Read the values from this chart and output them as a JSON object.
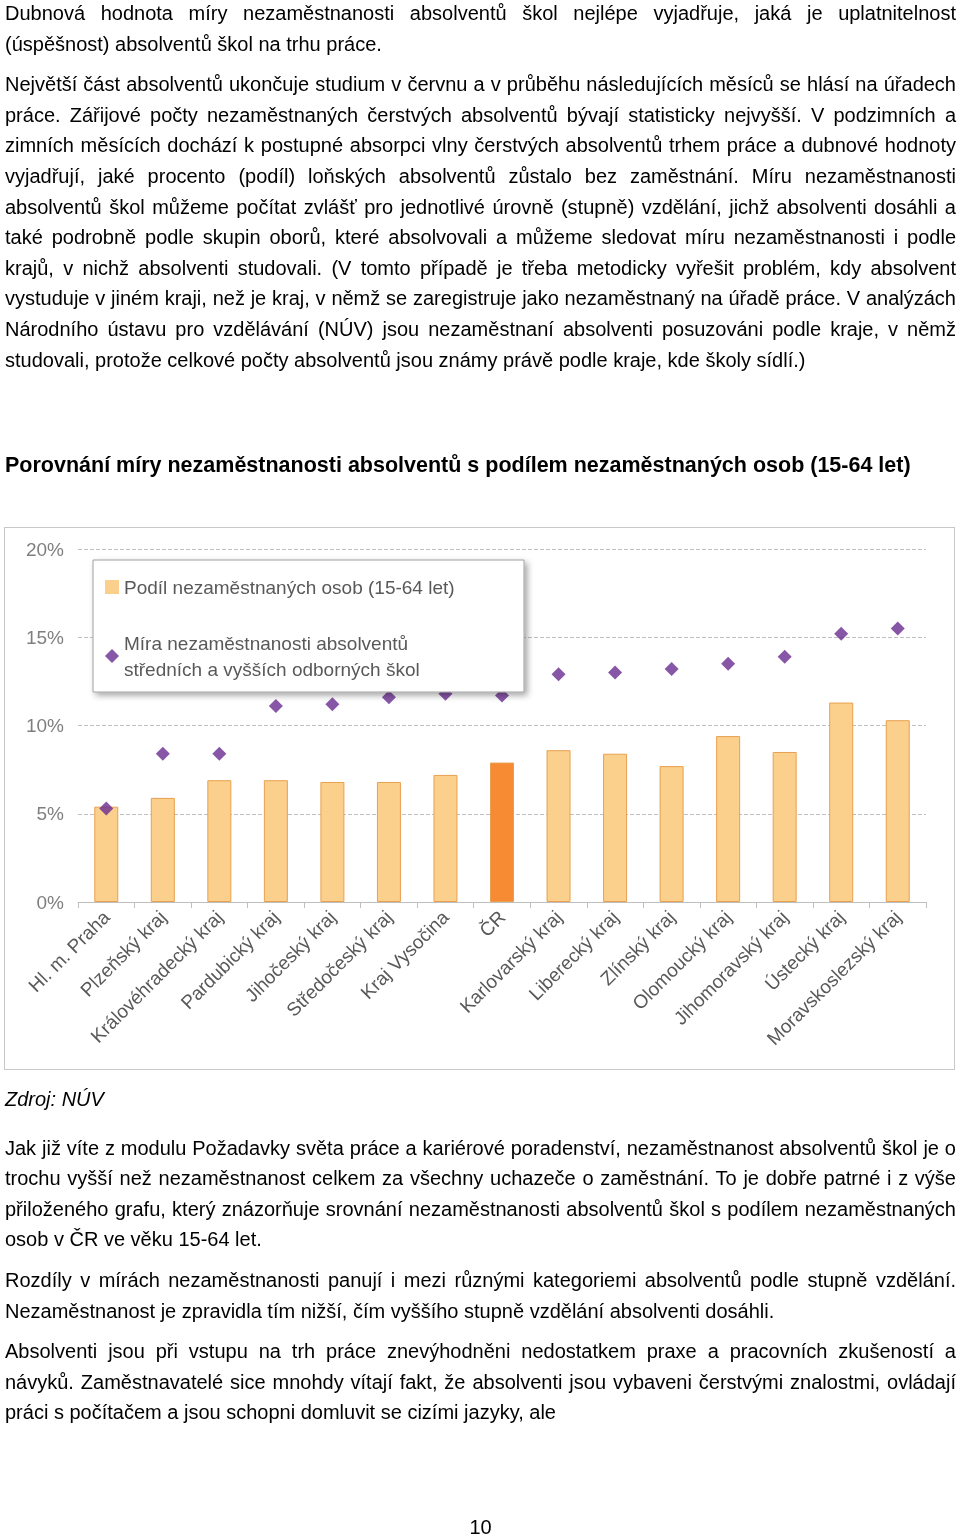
{
  "chart_data": {
    "type": "bar",
    "title": "Porovnání míry nezaměstnanosti absolventů s podílem nezaměstnaných osob (15-64 let)",
    "annotations": [
      "Dubnová hodnota míry nezaměstnanosti absolventů škol nejlépe vyjadřuje, jaká je uplatnitelnost (úspěšnost) absolventů škol na trhu práce.",
      "Největší část absolventů ukončuje studium v červnu a v průběhu následujících měsíců se hlásí na úřadech práce. Zářijové počty nezaměstnaných čerstvých absolventů bývají statisticky nejvyšší. V podzimních a zimních měsících dochází k postupné absorpci vlny čerstvých absolventů trhem práce a dubnové hodnoty vyjadřují, jaké procento (podíl) loňských absolventů zůstalo bez zaměstnání. Míru nezaměstnanosti absolventů škol můžeme počítat zvlášť pro jednotlivé úrovně (stupně) vzdělání, jichž absolventi dosáhli a také podrobně podle skupin oborů, které absolvovali a můžeme sledovat míru nezaměstnanosti i podle krajů, v nichž absolventi studovali. (V tomto případě je třeba metodicky vyřešit problém, kdy absolvent vystuduje v jiném kraji, než je kraj, v němž se zaregistruje jako nezaměstnaný na úřadě práce. V analýzách Národního ústavu pro vzdělávání (NÚV) jsou nezaměstnaní absolventi posuzováni podle kraje, v němž studovali, protože celkové počty absolventů jsou známy právě podle kraje, kde školy sídlí.)",
      "Zdroj: NÚV",
      "Jak již víte z modulu Požadavky světa práce a kariérové poradenství, nezaměstnanost absolventů škol je o trochu vyšší než nezaměstnanost celkem za všechny uchazeče o zaměstnání. To je dobře patrné i z výše přiloženého grafu, který znázorňuje srovnání nezaměstnanosti absolventů škol s podílem nezaměstnaných osob v ČR ve věku 15-64 let.",
      "Rozdíly v mírách nezaměstnanosti panují i mezi různými kategoriemi absolventů podle stupně vzdělání. Nezaměstnanost je zpravidla tím nižší, čím vyššího stupně vzdělání absolventi dosáhli.",
      "Absolventi jsou při vstupu na trh práce znevýhodněni nedostatkem praxe a pracovních zkušeností a návyků. Zaměstnavatelé sice mnohdy vítají fakt, že absolventi jsou vybaveni čerstvými znalostmi, ovládají práci s počítačem a jsou schopni domluvit se cizími jazyky, ale",
      "10"
    ],
    "categories": [
      "Hl. m. Praha",
      "Plzeňský kraj",
      "Královéhradecký kraj",
      "Pardubický kraj",
      "Jihočeský kraj",
      "Středočeský kraj",
      "Kraj Vysočina",
      "ČR",
      "Karlovarský kraj",
      "Liberecký kraj",
      "Zlínský kraj",
      "Olomoucký kraj",
      "Jihomoravský kraj",
      "Ústecký kraj",
      "Moravskoslezský kraj"
    ],
    "series": [
      {
        "name": "Podíl nezaměstnaných osob (15-64 let)",
        "color": "#fbcf8c",
        "colors": [
          "#fbcf8c",
          "#fbcf8c",
          "#fbcf8c",
          "#fbcf8c",
          "#fbcf8c",
          "#fbcf8c",
          "#fbcf8c",
          "#f68b33",
          "#fbcf8c",
          "#fbcf8c",
          "#fbcf8c",
          "#fbcf8c",
          "#fbcf8c",
          "#fbcf8c",
          "#fbcf8c"
        ],
        "values": [
          5.4,
          5.9,
          6.9,
          6.9,
          6.8,
          6.8,
          7.2,
          7.9,
          8.6,
          8.4,
          7.7,
          9.4,
          8.5,
          11.3,
          10.3
        ]
      },
      {
        "name": "Míra nezaměstnanosti absolventů středních a vyšších odborných škol",
        "type": "scatter",
        "color": "#6a2c91",
        "values": [
          5.3,
          8.4,
          8.4,
          11.1,
          11.2,
          11.6,
          11.8,
          11.7,
          12.9,
          13.0,
          13.2,
          13.5,
          13.9,
          15.2,
          15.5
        ]
      }
    ],
    "marker": "diamond",
    "ylim": [
      0,
      20
    ],
    "yticks": [
      {
        "value": 0,
        "label": "0%"
      },
      {
        "value": 5,
        "label": "5%"
      },
      {
        "value": 10,
        "label": "10%"
      },
      {
        "value": 15,
        "label": "15%"
      },
      {
        "value": 20,
        "label": "20%"
      }
    ],
    "grid": "y",
    "legend": "top left"
  }
}
